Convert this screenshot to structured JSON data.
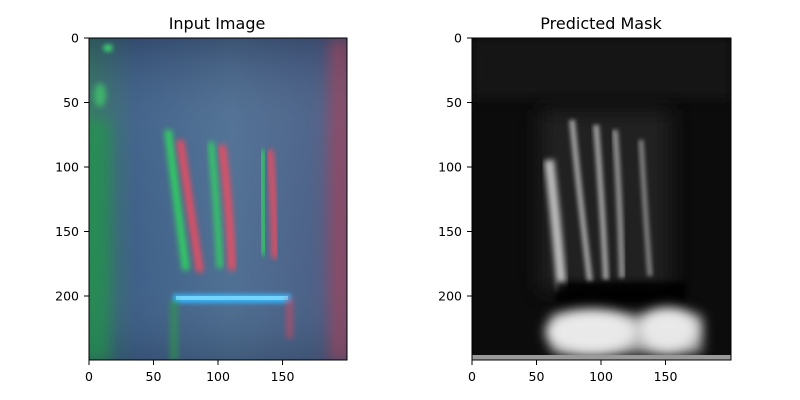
{
  "panels": [
    {
      "title": "Input Image",
      "x_ticks": [
        "0",
        "50",
        "100",
        "150"
      ],
      "y_ticks": [
        "0",
        "50",
        "100",
        "150",
        "200"
      ]
    },
    {
      "title": "Predicted Mask",
      "x_ticks": [
        "0",
        "50",
        "100",
        "150"
      ],
      "y_ticks": [
        "0",
        "50",
        "100",
        "150",
        "200"
      ]
    }
  ]
}
